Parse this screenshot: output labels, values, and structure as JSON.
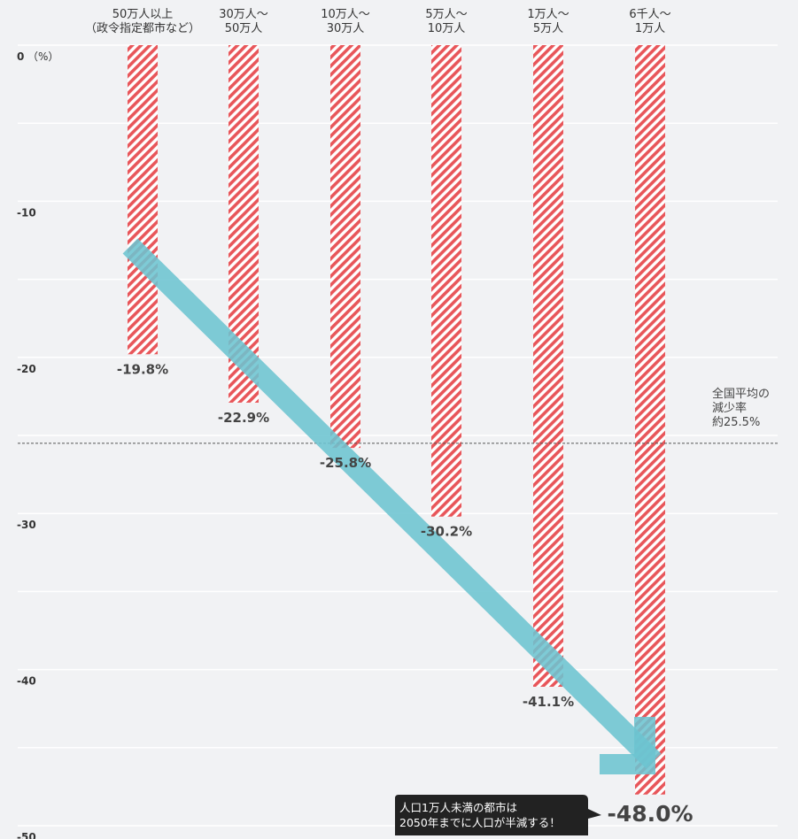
{
  "chart_data": {
    "type": "bar",
    "categories": [
      [
        "50万人以上",
        "（政令指定都市など）"
      ],
      [
        "30万人～",
        "50万人"
      ],
      [
        "10万人～",
        "30万人"
      ],
      [
        "5万人～",
        "10万人"
      ],
      [
        "1万人～",
        "5万人"
      ],
      [
        "6千人～",
        "1万人"
      ]
    ],
    "values": [
      -19.8,
      -22.9,
      -25.8,
      -30.2,
      -41.1,
      -48.0
    ],
    "value_labels": [
      "-19.8%",
      "-22.9%",
      "-25.8%",
      "-30.2%",
      "-41.1%",
      "-48.0%"
    ],
    "ylim": [
      -50,
      0
    ],
    "ytick_labels": [
      "0",
      "-10",
      "-20",
      "-30",
      "-40",
      "-50"
    ],
    "y_unit": "（%）",
    "grid": true,
    "reference_line": {
      "value": -25.5,
      "label": [
        "全国平均の",
        "減少率",
        "約25.5%"
      ]
    },
    "annotation": {
      "lines": [
        "人口1万人未満の都市は",
        "2050年までに人口が半減する！"
      ]
    },
    "colors": {
      "bar_stripe": "#e8565a",
      "trend_arrow": "#6cc4d0",
      "callout_bg": "#222222",
      "background": "#f1f2f4"
    }
  }
}
